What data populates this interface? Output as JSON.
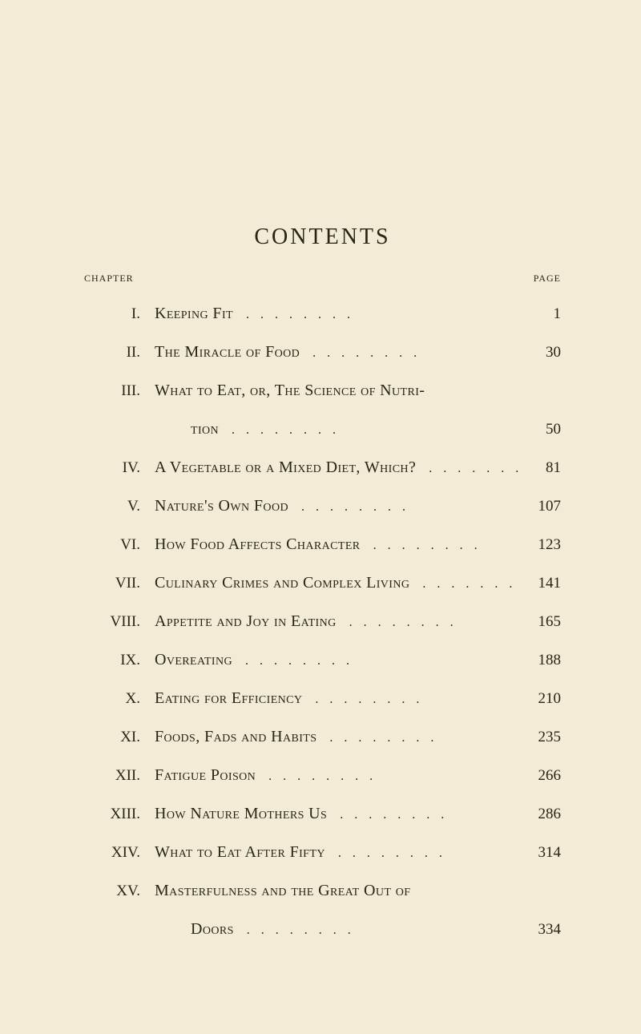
{
  "title": "CONTENTS",
  "header_left": "CHAPTER",
  "header_right": "PAGE",
  "dots": "........",
  "background_color": "#f2ebd5",
  "text_color": "#2a2418",
  "title_fontsize": 28,
  "body_fontsize": 19,
  "header_fontsize": 12,
  "entries": [
    {
      "num": "I.",
      "title_a": "Keeping Fit",
      "title_b": "",
      "page": "1"
    },
    {
      "num": "II.",
      "title_a": "The Miracle of Food",
      "title_b": "",
      "page": "30"
    },
    {
      "num": "III.",
      "title_a": "What to Eat, or, The Science of Nutri-",
      "title_b": "tion",
      "page": "50"
    },
    {
      "num": "IV.",
      "title_a": "A Vegetable or a Mixed Diet, Which?",
      "title_b": "",
      "page": "81"
    },
    {
      "num": "V.",
      "title_a": "Nature's Own Food",
      "title_b": "",
      "page": "107"
    },
    {
      "num": "VI.",
      "title_a": "How Food Affects Character",
      "title_b": "",
      "page": "123"
    },
    {
      "num": "VII.",
      "title_a": "Culinary Crimes and Complex Living",
      "title_b": "",
      "page": "141"
    },
    {
      "num": "VIII.",
      "title_a": "Appetite and Joy in Eating",
      "title_b": "",
      "page": "165"
    },
    {
      "num": "IX.",
      "title_a": "Overeating",
      "title_b": "",
      "page": "188"
    },
    {
      "num": "X.",
      "title_a": "Eating for Efficiency",
      "title_b": "",
      "page": "210"
    },
    {
      "num": "XI.",
      "title_a": "Foods, Fads and Habits",
      "title_b": "",
      "page": "235"
    },
    {
      "num": "XII.",
      "title_a": "Fatigue Poison",
      "title_b": "",
      "page": "266"
    },
    {
      "num": "XIII.",
      "title_a": "How Nature Mothers Us",
      "title_b": "",
      "page": "286"
    },
    {
      "num": "XIV.",
      "title_a": "What to Eat After Fifty",
      "title_b": "",
      "page": "314"
    },
    {
      "num": "XV.",
      "title_a": "Masterfulness and the Great Out of",
      "title_b": "Doors",
      "page": "334"
    }
  ]
}
